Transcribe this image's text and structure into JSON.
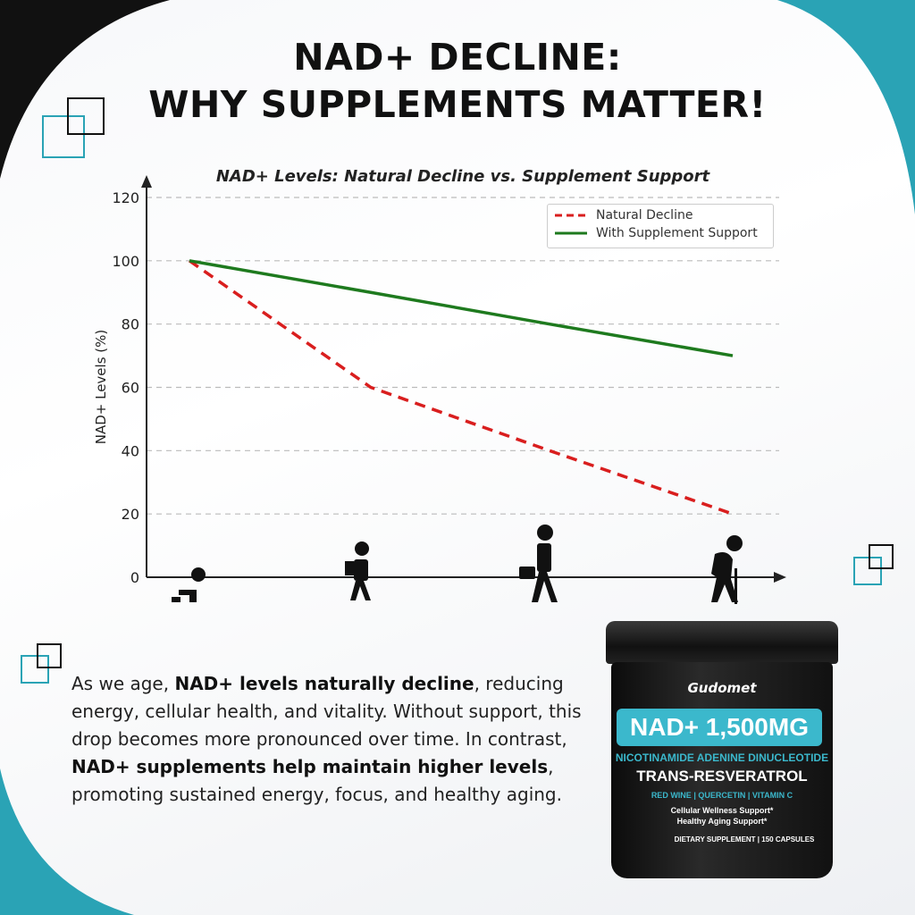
{
  "headline": {
    "line1": "NAD+ DECLINE:",
    "line2": "WHY SUPPLEMENTS MATTER!"
  },
  "colors": {
    "teal": "#2aa3b5",
    "natural": "#d91e1e",
    "supplement": "#1e7a1e"
  },
  "chart_data": {
    "type": "line",
    "title": "NAD+ Levels: Natural Decline vs. Supplement Support",
    "xlabel": "",
    "ylabel": "NAD+ Levels (%)",
    "x_icons": [
      "baby-crawling-icon",
      "child-with-backpack-icon",
      "adult-with-briefcase-icon",
      "elderly-with-cane-icon"
    ],
    "ylim": [
      0,
      120
    ],
    "yticks": [
      0,
      20,
      40,
      60,
      80,
      100,
      120
    ],
    "grid": true,
    "legend_position": "top-right",
    "series": [
      {
        "name": "Natural Decline",
        "style": "dashed",
        "color": "#d91e1e",
        "values": [
          100,
          60,
          40,
          20
        ]
      },
      {
        "name": "With Supplement Support",
        "style": "solid",
        "color": "#1e7a1e",
        "values": [
          100,
          90,
          80,
          70
        ]
      }
    ]
  },
  "description": {
    "p1": "As we age, ",
    "b1": "NAD+ levels naturally decline",
    "p2": ", reducing energy, cellular health, and vitality. Without support, this drop becomes more pronounced over time. In contrast, ",
    "b2": "NAD+ supplements help maintain higher levels",
    "p3": ", promoting sustained energy, focus, and healthy aging."
  },
  "product": {
    "brand": "Gudomet",
    "dose": "NAD+ 1,500MG",
    "ingredient": "NICOTINAMIDE ADENINE DINUCLEOTIDE",
    "secondary": "TRANS-RESVERATROL",
    "extras": "RED WINE | QUERCETIN | VITAMIN C",
    "claim1": "Cellular Wellness Support*",
    "claim2": "Healthy Aging Support*",
    "footer": "DIETARY SUPPLEMENT | 150 CAPSULES"
  }
}
